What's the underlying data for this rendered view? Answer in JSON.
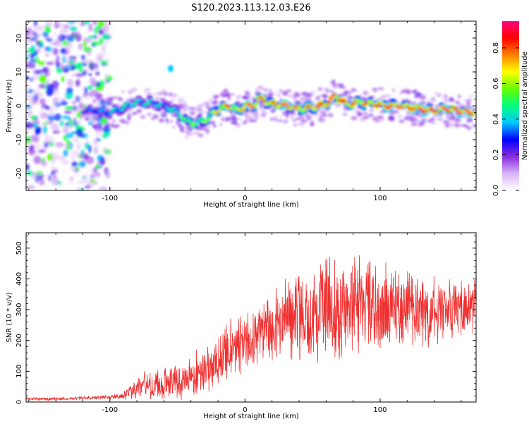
{
  "figure_title": "S120.2023.113.12.03.E26",
  "chart_data": [
    {
      "type": "heatmap",
      "title": "",
      "xlabel": "Height of straight line (km)",
      "ylabel": "Frequency (Hz)",
      "xlim": [
        -162,
        171
      ],
      "ylim": [
        -25,
        25
      ],
      "xticks": [
        -100,
        0,
        100
      ],
      "yticks": [
        -20,
        -10,
        0,
        10,
        20
      ],
      "colorbar": {
        "label": "Normalized spectral amplitude",
        "range": [
          0.0,
          0.95
        ],
        "ticks": [
          0.0,
          0.2,
          0.4,
          0.6,
          0.8
        ],
        "colors": [
          "#ffffff",
          "#d8b4f8",
          "#8a2be2",
          "#0000ff",
          "#00c8ff",
          "#00ff7f",
          "#66ff00",
          "#ffff00",
          "#ff8000",
          "#ff0000",
          "#ff0080"
        ]
      },
      "ridge": {
        "x": [
          -120,
          -110,
          -100,
          -90,
          -80,
          -70,
          -60,
          -50,
          -42,
          -35,
          -28,
          -20,
          -12,
          -5,
          0,
          5,
          12,
          20,
          30,
          40,
          50,
          60,
          67,
          75,
          85,
          95,
          105,
          115,
          125,
          135,
          145,
          155,
          165,
          171
        ],
        "frequency": [
          -1.5,
          -1.5,
          -2.0,
          -0.5,
          1.0,
          1.0,
          0.0,
          -2.0,
          -5.0,
          -5.0,
          -4.0,
          -1.0,
          0.0,
          -1.5,
          0.0,
          0.0,
          2.0,
          0.5,
          0.0,
          -1.0,
          -0.5,
          0.5,
          3.0,
          0.5,
          1.0,
          0.5,
          0.0,
          0.0,
          -0.5,
          -1.5,
          -1.0,
          -1.0,
          -2.0,
          -1.8
        ],
        "amplitude": [
          0.3,
          0.35,
          0.4,
          0.45,
          0.45,
          0.45,
          0.4,
          0.5,
          0.6,
          0.55,
          0.6,
          0.7,
          0.8,
          0.6,
          0.9,
          0.85,
          0.8,
          0.75,
          0.9,
          0.7,
          0.8,
          0.85,
          0.9,
          0.8,
          0.75,
          0.8,
          0.85,
          0.8,
          0.85,
          0.9,
          0.85,
          0.9,
          0.9,
          0.85
        ]
      }
    },
    {
      "type": "line",
      "title": "",
      "xlabel": "Height of straight line (km)",
      "ylabel": "SNR (10 * v/v)",
      "xlim": [
        -162,
        171
      ],
      "ylim": [
        0,
        550
      ],
      "xticks": [
        -100,
        0,
        100
      ],
      "yticks": [
        0,
        100,
        200,
        300,
        400,
        500
      ],
      "line_color": "#f03030",
      "series": [
        {
          "x": [
            -162,
            -150,
            -140,
            -130,
            -120,
            -110,
            -100,
            -90,
            -85,
            -80,
            -75,
            -70,
            -60,
            -50,
            -40,
            -30,
            -20,
            -10,
            0,
            10,
            20,
            30,
            40,
            50,
            60,
            70,
            80,
            90,
            100,
            110,
            120,
            130,
            140,
            150,
            160,
            171
          ],
          "mean": [
            10,
            10,
            10,
            11,
            12,
            14,
            16,
            20,
            35,
            50,
            55,
            55,
            60,
            70,
            80,
            100,
            140,
            170,
            190,
            220,
            240,
            280,
            290,
            300,
            300,
            305,
            310,
            305,
            300,
            300,
            310,
            300,
            295,
            300,
            310,
            310
          ],
          "spread": [
            6,
            6,
            6,
            6,
            7,
            8,
            9,
            14,
            30,
            45,
            50,
            55,
            60,
            70,
            80,
            90,
            100,
            110,
            120,
            130,
            150,
            160,
            170,
            180,
            190,
            200,
            200,
            190,
            170,
            150,
            140,
            130,
            120,
            110,
            100,
            100
          ]
        }
      ]
    }
  ]
}
